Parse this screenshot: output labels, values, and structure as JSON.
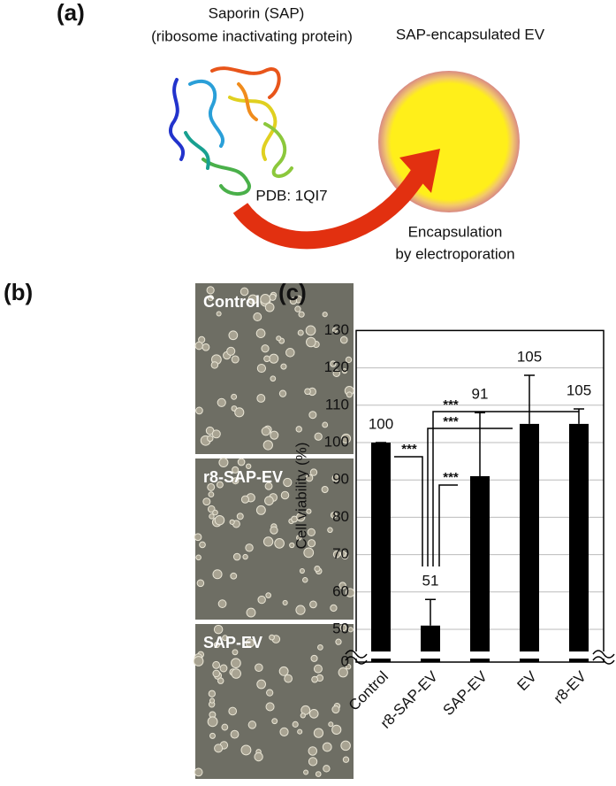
{
  "panel_a": {
    "label": "(a)",
    "protein_name": "Saporin (SAP)",
    "protein_desc": "(ribosome inactivating protein)",
    "ev_label": "SAP-encapsulated EV",
    "pdb": "PDB: 1QI7",
    "method_line1": "Encapsulation",
    "method_line2": "by electroporation"
  },
  "panel_b": {
    "label": "(b)",
    "images": [
      "Control",
      "r8-SAP-EV",
      "SAP-EV"
    ]
  },
  "chart_data": {
    "type": "bar",
    "panel_label": "(c)",
    "y_label": "Cell viability (%)",
    "categories": [
      "Control",
      "r8-SAP-EV",
      "SAP-EV",
      "EV",
      "r8-EV"
    ],
    "values": [
      100,
      51,
      91,
      105,
      105
    ],
    "errors": [
      0,
      7,
      17,
      13,
      4
    ],
    "color": "#000000",
    "ylim": [
      0,
      130
    ],
    "y_break": [
      0,
      45
    ],
    "yticks": [
      0,
      50,
      60,
      70,
      80,
      90,
      100,
      110,
      120,
      130
    ],
    "grid": true,
    "annotations": [
      "***",
      "***",
      "***",
      "***"
    ]
  }
}
